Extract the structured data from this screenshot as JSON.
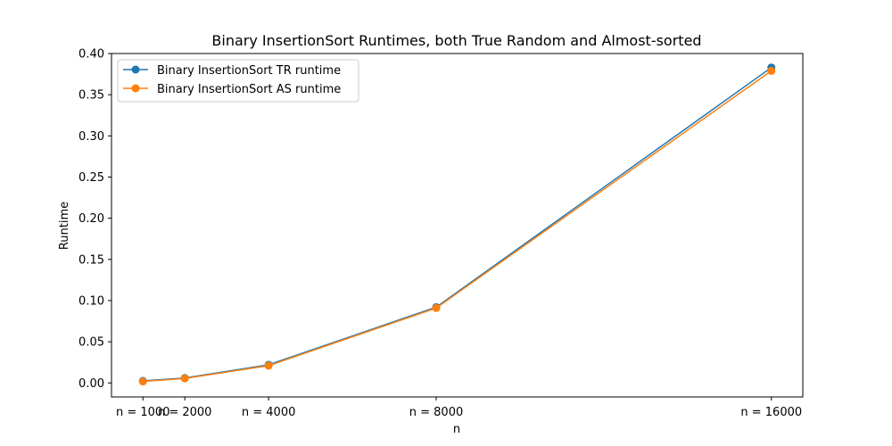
{
  "chart_data": {
    "type": "line",
    "title": "Binary InsertionSort Runtimes, both True Random and Almost-sorted",
    "xlabel": "n",
    "ylabel": "Runtime",
    "x_values": [
      1000,
      2000,
      4000,
      8000,
      16000
    ],
    "x_tick_labels": [
      "n = 1000",
      "n = 2000",
      "n = 4000",
      "n = 8000",
      "n = 16000"
    ],
    "xlim": [
      250,
      16750
    ],
    "ylim": [
      -0.017,
      0.4
    ],
    "y_ticks": [
      0.0,
      0.05,
      0.1,
      0.15,
      0.2,
      0.25,
      0.3,
      0.35,
      0.4
    ],
    "y_tick_labels": [
      "0.00",
      "0.05",
      "0.10",
      "0.15",
      "0.20",
      "0.25",
      "0.30",
      "0.35",
      "0.40"
    ],
    "grid": false,
    "legend_position": "upper-left",
    "series": [
      {
        "name": "Binary InsertionSort TR runtime",
        "color": "#1f77b4",
        "values": [
          0.0025,
          0.006,
          0.022,
          0.092,
          0.383
        ]
      },
      {
        "name": "Binary InsertionSort AS runtime",
        "color": "#ff7f0e",
        "values": [
          0.0018,
          0.0055,
          0.021,
          0.091,
          0.379
        ]
      }
    ]
  }
}
